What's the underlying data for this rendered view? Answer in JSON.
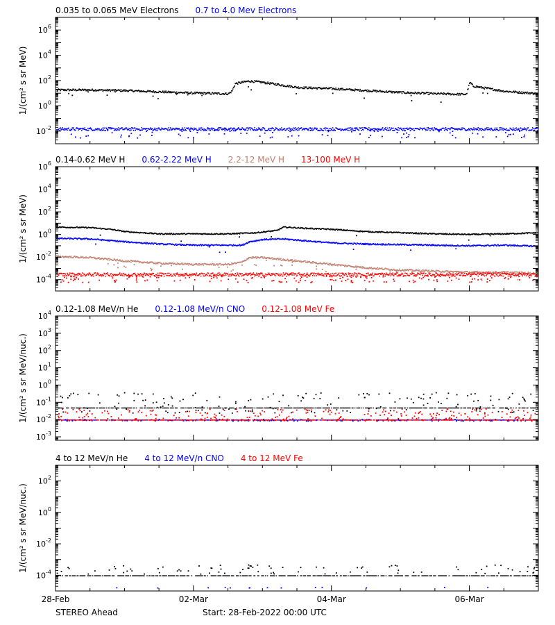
{
  "footer": {
    "spacecraft": "STEREO Ahead",
    "start": "Start: 28-Feb-2022 00:00 UTC"
  },
  "x_axis": {
    "unit": "days since start (28-Feb-2022 00:00 UTC)",
    "range": [
      0,
      7
    ],
    "ticks": [
      {
        "value": 0,
        "label": "28-Feb"
      },
      {
        "value": 2,
        "label": "02-Mar"
      },
      {
        "value": 4,
        "label": "04-Mar"
      },
      {
        "value": 6,
        "label": "06-Mar"
      }
    ],
    "minor_per_major": 4
  },
  "chart_data": [
    {
      "type": "scatter",
      "log_y": true,
      "ylabel": "1/(cm² s sr MeV)",
      "ylim_exp": [
        -3,
        7
      ],
      "ytick_exps": [
        -2,
        0,
        2,
        4,
        6
      ],
      "legend": [
        {
          "name": "0.035 to 0.065 MeV Electrons",
          "color": "#000000"
        },
        {
          "name": "0.7 to 4.0 Mev Electrons",
          "color": "#0000ff"
        }
      ],
      "series": [
        {
          "name": "0.035 to 0.065 MeV Electrons",
          "color": "#000000",
          "scatter": 0.08,
          "noise": 0.03,
          "profile": [
            [
              0,
              1.3
            ],
            [
              0.5,
              1.3
            ],
            [
              1.0,
              1.25
            ],
            [
              1.5,
              1.15
            ],
            [
              2.0,
              1.05
            ],
            [
              2.5,
              1.0
            ],
            [
              2.55,
              1.2
            ],
            [
              2.6,
              1.8
            ],
            [
              2.8,
              2.0
            ],
            [
              3.0,
              1.9
            ],
            [
              3.5,
              1.5
            ],
            [
              4.0,
              1.4
            ],
            [
              4.5,
              1.25
            ],
            [
              5.0,
              1.1
            ],
            [
              5.5,
              1.0
            ],
            [
              5.95,
              0.95
            ],
            [
              6.0,
              1.9
            ],
            [
              6.05,
              1.6
            ],
            [
              6.5,
              1.2
            ],
            [
              7.0,
              1.0
            ]
          ]
        },
        {
          "name": "0.7 to 4.0 Mev Electrons",
          "color": "#0000ff",
          "scatter": 0.12,
          "noise": 0.12,
          "profile": [
            [
              0,
              -1.8
            ],
            [
              7.0,
              -1.8
            ]
          ]
        }
      ]
    },
    {
      "type": "scatter",
      "log_y": true,
      "ylabel": "1/(cm² s sr MeV)",
      "ylim_exp": [
        -5,
        6
      ],
      "ytick_exps": [
        -4,
        -2,
        0,
        2,
        4,
        6
      ],
      "legend": [
        {
          "name": "0.14-0.62 MeV H",
          "color": "#000000"
        },
        {
          "name": "0.62-2.22 MeV H",
          "color": "#0000ff"
        },
        {
          "name": "2.2-12 MeV H",
          "color": "#c08070"
        },
        {
          "name": "13-100 MeV H",
          "color": "#ff0000"
        }
      ],
      "series": [
        {
          "name": "0.14-0.62 MeV H",
          "color": "#000000",
          "scatter": 0.05,
          "noise": 0.01,
          "profile": [
            [
              0,
              0.7
            ],
            [
              0.5,
              0.65
            ],
            [
              0.8,
              0.5
            ],
            [
              1.0,
              0.3
            ],
            [
              1.5,
              0.1
            ],
            [
              2.5,
              0.1
            ],
            [
              2.9,
              0.2
            ],
            [
              3.2,
              0.4
            ],
            [
              3.3,
              0.7
            ],
            [
              3.6,
              0.6
            ],
            [
              4.0,
              0.5
            ],
            [
              4.5,
              0.3
            ],
            [
              5.0,
              0.2
            ],
            [
              5.5,
              0.1
            ],
            [
              6.0,
              0.05
            ],
            [
              6.5,
              0.1
            ],
            [
              7.0,
              0.2
            ]
          ]
        },
        {
          "name": "0.62-2.22 MeV H",
          "color": "#0000ff",
          "scatter": 0.06,
          "noise": 0.01,
          "profile": [
            [
              0,
              -0.3
            ],
            [
              0.5,
              -0.35
            ],
            [
              1.0,
              -0.6
            ],
            [
              1.5,
              -0.8
            ],
            [
              2.0,
              -0.9
            ],
            [
              2.7,
              -0.9
            ],
            [
              2.8,
              -0.6
            ],
            [
              3.0,
              -0.4
            ],
            [
              3.3,
              -0.35
            ],
            [
              3.6,
              -0.5
            ],
            [
              4.0,
              -0.7
            ],
            [
              4.5,
              -0.8
            ],
            [
              5.0,
              -0.85
            ],
            [
              5.5,
              -0.9
            ],
            [
              6.0,
              -0.95
            ],
            [
              6.5,
              -0.9
            ],
            [
              7.0,
              -1.0
            ]
          ]
        },
        {
          "name": "2.2-12 MeV H",
          "color": "#c08070",
          "scatter": 0.08,
          "noise": 0.06,
          "profile": [
            [
              0,
              -1.9
            ],
            [
              0.5,
              -2.0
            ],
            [
              1.0,
              -2.3
            ],
            [
              1.5,
              -2.5
            ],
            [
              2.0,
              -2.6
            ],
            [
              2.5,
              -2.6
            ],
            [
              2.7,
              -2.4
            ],
            [
              2.8,
              -2.0
            ],
            [
              3.0,
              -2.0
            ],
            [
              3.5,
              -2.3
            ],
            [
              4.0,
              -2.6
            ],
            [
              4.5,
              -2.9
            ],
            [
              5.0,
              -3.1
            ],
            [
              5.5,
              -3.2
            ],
            [
              6.0,
              -3.3
            ],
            [
              6.5,
              -3.3
            ],
            [
              7.0,
              -3.4
            ]
          ]
        },
        {
          "name": "13-100 MeV H",
          "color": "#ff0000",
          "scatter": 0.15,
          "noise": 0.22,
          "profile": [
            [
              0,
              -3.5
            ],
            [
              7.0,
              -3.5
            ]
          ]
        }
      ]
    },
    {
      "type": "scatter",
      "log_y": true,
      "ylabel": "1/(cm² s sr MeV/nuc.)",
      "ylim_exp": [
        -3.2,
        4
      ],
      "ytick_exps": [
        -3,
        -2,
        -1,
        0,
        1,
        2,
        3,
        4
      ],
      "legend": [
        {
          "name": "0.12-1.08 MeV/n He",
          "color": "#000000"
        },
        {
          "name": "0.12-1.08 MeV/n CNO",
          "color": "#0000ff"
        },
        {
          "name": "0.12-1.08 MeV Fe",
          "color": "#ff0000"
        }
      ],
      "series": [
        {
          "name": "0.12-1.08 MeV/n He",
          "color": "#000000",
          "scatter": 0.0,
          "noise": 0.25,
          "noise_level": -1.0,
          "noise_spread": 0.6,
          "profile": [
            [
              0,
              -1.3
            ],
            [
              7.0,
              -1.3
            ]
          ]
        },
        {
          "name": "0.12-1.08 MeV/n CNO",
          "color": "#0000ff",
          "scatter": 0.0,
          "noise": 0.3,
          "noise_level": -2.0,
          "noise_spread": 0.05,
          "profile": [
            [
              0,
              -2.0
            ],
            [
              7.0,
              -2.0
            ]
          ]
        },
        {
          "name": "0.12-1.08 MeV Fe",
          "color": "#ff0000",
          "scatter": 0.0,
          "noise": 0.35,
          "noise_level": -1.7,
          "noise_spread": 0.35,
          "profile": [
            [
              0,
              -2.0
            ],
            [
              7.0,
              -2.0
            ]
          ]
        }
      ]
    },
    {
      "type": "scatter",
      "log_y": true,
      "ylabel": "1/(cm² s sr MeV/nuc.)",
      "ylim_exp": [
        -5,
        3
      ],
      "ytick_exps": [
        -4,
        -2,
        0,
        2
      ],
      "legend": [
        {
          "name": "4 to 12 MeV/n He",
          "color": "#000000"
        },
        {
          "name": "4 to 12 MeV/n CNO",
          "color": "#0000ff"
        },
        {
          "name": "4 to 12 MeV Fe",
          "color": "#ff0000"
        }
      ],
      "series": [
        {
          "name": "4 to 12 MeV/n He",
          "color": "#000000",
          "scatter": 0.0,
          "noise": 0.12,
          "noise_level": -3.6,
          "noise_spread": 0.3,
          "profile": [
            [
              0,
              -4.0
            ],
            [
              7.0,
              -4.0
            ]
          ]
        },
        {
          "name": "4 to 12 MeV/n CNO",
          "color": "#0000ff",
          "scatter": 0.0,
          "noise": 0.02,
          "noise_level": -4.75,
          "noise_spread": 0.02,
          "profile": [
            [
              7.0,
              -99
            ]
          ]
        }
      ]
    }
  ]
}
